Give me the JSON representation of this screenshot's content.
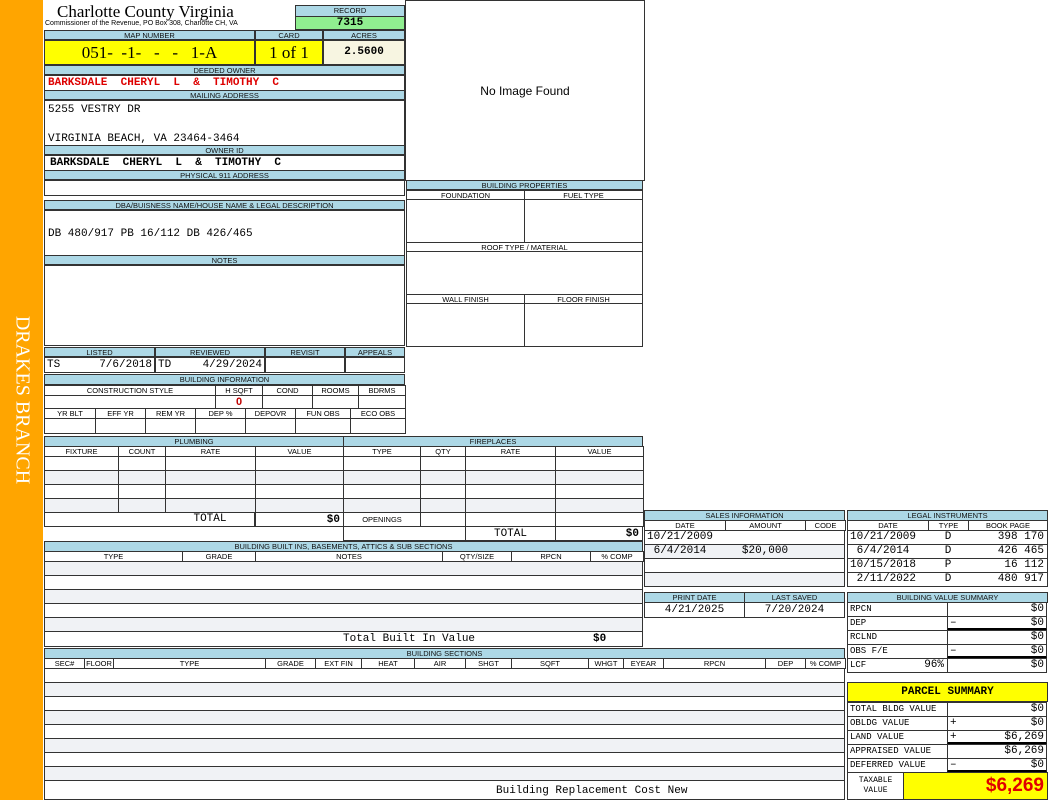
{
  "side_label": "DRAKES BRANCH",
  "header": {
    "title": "Charlotte County Virginia",
    "subtitle": "Commissioner of the Revenue, PO Box 308, Charlotte CH, VA",
    "record_label": "RECORD",
    "record": "7315"
  },
  "image_placeholder": "No Image Found",
  "map": {
    "map_label": "MAP NUMBER",
    "map_number": "051-  -1-   -   -   1-A",
    "card_label": "CARD",
    "card": "1 of 1",
    "acres_label": "ACRES",
    "acres": "2.5600"
  },
  "owner": {
    "deeded_label": "DEEDED OWNER",
    "deeded": "BARKSDALE  CHERYL  L  &  TIMOTHY  C",
    "mailing_label": "MAILING ADDRESS",
    "mail_line1": "5255 VESTRY DR",
    "mail_line2": "VIRGINIA BEACH, VA 23464-3464",
    "owner_id_label": "OWNER ID",
    "owner_id": "BARKSDALE  CHERYL  L  &  TIMOTHY  C",
    "physical_label": "PHYSICAL 911 ADDRESS",
    "physical": ""
  },
  "legal": {
    "label": "DBA/BUISNESS NAME/HOUSE NAME & LEGAL DESCRIPTION",
    "text": "DB 480/917 PB 16/112 DB 426/465",
    "notes_label": "NOTES"
  },
  "building_properties": {
    "label": "BUILDING PROPERTIES",
    "foundation": "FOUNDATION",
    "fuel": "FUEL TYPE",
    "roof": "ROOF TYPE / MATERIAL",
    "wall": "WALL FINISH",
    "floor": "FLOOR FINISH"
  },
  "listing": {
    "listed_label": "LISTED",
    "listed_by": "TS",
    "listed_date": "7/6/2018",
    "reviewed_label": "REVIEWED",
    "reviewed_by": "TD",
    "reviewed_date": "4/29/2024",
    "revisit_label": "REVISIT",
    "appeals_label": "APPEALS"
  },
  "building_info": {
    "label": "BUILDING INFORMATION",
    "construction": "CONSTRUCTION STYLE",
    "hsqft": "H SQFT",
    "hsqft_value": "0",
    "cond": "COND",
    "rooms": "ROOMS",
    "bdrms": "BDRMS",
    "yrblt": "YR BLT",
    "effyr": "EFF YR",
    "remyr": "REM YR",
    "dep": "DEP %",
    "depovr": "DEPOVR",
    "funobs": "FUN OBS",
    "ecoobs": "ECO OBS"
  },
  "plumbing": {
    "label": "PLUMBING",
    "cols": [
      "FIXTURE",
      "COUNT",
      "RATE",
      "VALUE"
    ],
    "total_label": "TOTAL",
    "total": "$0"
  },
  "fireplaces": {
    "label": "FIREPLACES",
    "cols": [
      "TYPE",
      "QTY",
      "RATE",
      "VALUE"
    ],
    "openings": "OPENINGS",
    "total_label": "TOTAL",
    "total": "$0"
  },
  "builtins": {
    "label": "BUILDING BUILT INS, BASEMENTS, ATTICS & SUB SECTIONS",
    "cols": [
      "TYPE",
      "GRADE",
      "NOTES",
      "QTY/SIZE",
      "RPCN",
      "% COMP"
    ],
    "total_label": "Total Built In Value",
    "total": "$0"
  },
  "sections": {
    "label": "BUILDING SECTIONS",
    "cols": [
      "SEC#",
      "FLOOR",
      "TYPE",
      "GRADE",
      "EXT FIN",
      "HEAT",
      "AIR",
      "SHGT",
      "SQFT",
      "WHGT",
      "EYEAR",
      "RPCN",
      "DEP",
      "% COMP"
    ],
    "footer": "Building Replacement Cost New"
  },
  "sales": {
    "label": "SALES INFORMATION",
    "cols": [
      "DATE",
      "AMOUNT",
      "CODE"
    ],
    "rows": [
      [
        "10/21/2009",
        "",
        ""
      ],
      [
        " 6/4/2014",
        "$20,000",
        ""
      ],
      [
        "",
        "",
        ""
      ],
      [
        "",
        "",
        ""
      ]
    ]
  },
  "legal_instruments": {
    "label": "LEGAL INSTRUMENTS",
    "cols": [
      "DATE",
      "TYPE",
      "BOOK PAGE"
    ],
    "rows": [
      [
        "10/21/2009",
        "D",
        "398 170"
      ],
      [
        " 6/4/2014",
        "D",
        "426 465"
      ],
      [
        "10/15/2018",
        "P",
        "16 112"
      ],
      [
        " 2/11/2022",
        "D",
        "480 917"
      ]
    ]
  },
  "dates": {
    "print_label": "PRINT DATE",
    "print": "4/21/2025",
    "saved_label": "LAST SAVED",
    "saved": "7/20/2024"
  },
  "value_summary": {
    "label": "BUILDING VALUE SUMMARY",
    "rows": [
      {
        "name": "RPCN",
        "op": "",
        "value": "$0"
      },
      {
        "name": "DEP",
        "op": "–",
        "value": "$0"
      },
      {
        "name": "RCLND",
        "op": "",
        "value": "$0"
      },
      {
        "name": "OBS F/E",
        "op": "–",
        "value": "$0"
      },
      {
        "name": "LCF",
        "pct": "96%",
        "op": "",
        "value": "$0"
      }
    ]
  },
  "parcel_summary": {
    "label": "PARCEL SUMMARY",
    "rows": [
      {
        "name": "TOTAL BLDG VALUE",
        "op": "",
        "value": "$0"
      },
      {
        "name": "OBLDG VALUE",
        "op": "+",
        "value": "$0"
      },
      {
        "name": "LAND VALUE",
        "op": "+",
        "value": "$6,269"
      },
      {
        "name": "APPRAISED VALUE",
        "op": "",
        "value": "$6,269"
      },
      {
        "name": "DEFERRED VALUE",
        "op": "–",
        "value": "$0"
      }
    ],
    "taxable_label": "TAXABLE VALUE",
    "taxable": "$6,269"
  },
  "colors": {
    "side": "#FFA500",
    "label_bg": "#ADD8E6",
    "highlight": "#FFFF00",
    "record_bg": "#90EE90",
    "owner_red": "#DD0000"
  }
}
